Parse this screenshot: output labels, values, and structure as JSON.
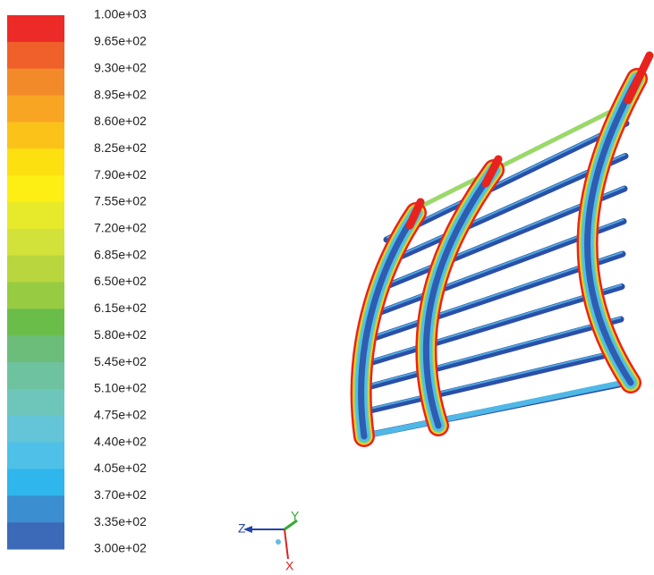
{
  "legend": {
    "labels": [
      "1.00e+03",
      "9.65e+02",
      "9.30e+02",
      "8.95e+02",
      "8.60e+02",
      "8.25e+02",
      "7.90e+02",
      "7.55e+02",
      "7.20e+02",
      "6.85e+02",
      "6.50e+02",
      "6.15e+02",
      "5.80e+02",
      "5.45e+02",
      "5.10e+02",
      "4.75e+02",
      "4.40e+02",
      "4.05e+02",
      "3.70e+02",
      "3.35e+02",
      "3.00e+02"
    ],
    "colors": [
      "#ec2a27",
      "#f0602b",
      "#f38a2a",
      "#f7a523",
      "#fbc21a",
      "#fde00f",
      "#fdef14",
      "#e7ea2a",
      "#d3e13b",
      "#b9d63e",
      "#97cb42",
      "#6bbd4a",
      "#6cbd7a",
      "#6fc2a0",
      "#6ec6bb",
      "#64c4d8",
      "#4fc0e8",
      "#2fb6ec",
      "#3b8fd0",
      "#3d6ab8",
      "#3451a8"
    ]
  },
  "triad": {
    "z": "Z",
    "y": "Y",
    "x": "X"
  }
}
